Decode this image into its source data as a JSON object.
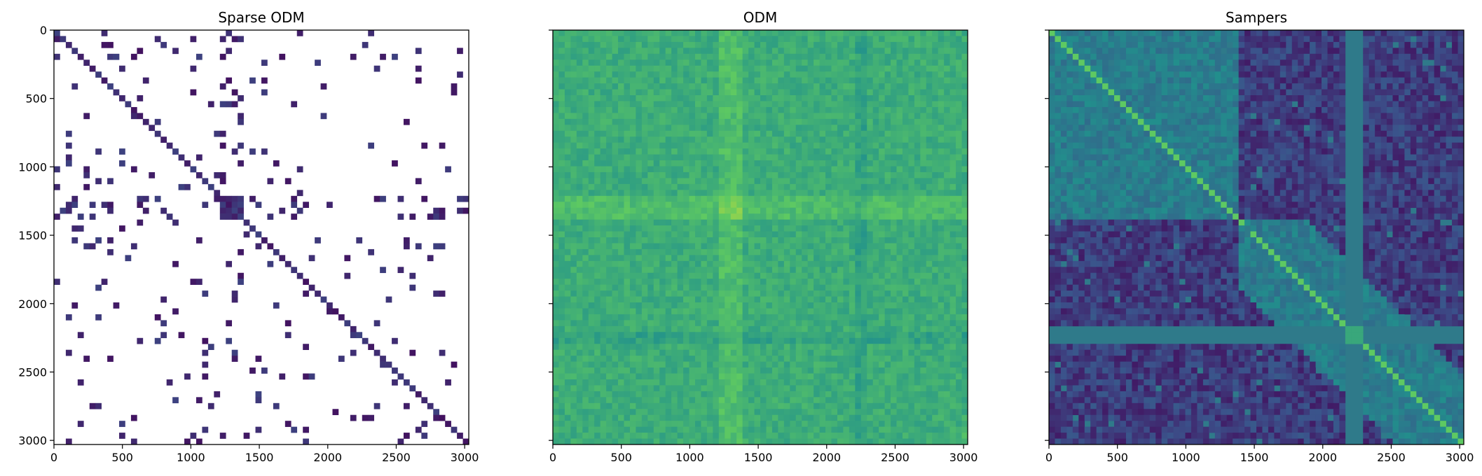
{
  "chart_data": [
    {
      "type": "heatmap",
      "title": "Sparse ODM",
      "xlabel": "",
      "ylabel": "",
      "xlim": [
        0,
        3030
      ],
      "ylim": [
        3030,
        0
      ],
      "xticks": [
        0,
        500,
        1000,
        1500,
        2000,
        2500,
        3000
      ],
      "yticks": [
        0,
        500,
        1000,
        1500,
        2000,
        2500,
        3000
      ],
      "show_y_tick_labels": true,
      "colormap": "viridis",
      "background": "#ffffff",
      "blocks": [
        {
          "range": [
            1230,
            1390
          ],
          "strength": 0.85
        },
        {
          "range": [
            1800,
            1880
          ],
          "strength": 0.35
        },
        {
          "range": [
            2160,
            2240
          ],
          "strength": 0.3
        },
        {
          "range": [
            2400,
            2480
          ],
          "strength": 0.3
        }
      ],
      "bands": [
        {
          "range": [
            1220,
            1400
          ],
          "strength": 0.35
        },
        {
          "range": [
            100,
            300
          ],
          "strength": 0.15
        }
      ],
      "diagonal": true
    },
    {
      "type": "heatmap",
      "title": "ODM",
      "xlabel": "",
      "ylabel": "",
      "xlim": [
        0,
        3030
      ],
      "ylim": [
        3030,
        0
      ],
      "xticks": [
        0,
        500,
        1000,
        1500,
        2000,
        2500,
        3000
      ],
      "yticks": [
        0,
        500,
        1000,
        1500,
        2000,
        2500,
        3000
      ],
      "show_y_tick_labels": false,
      "colormap": "viridis",
      "background": "#7ac850",
      "blocks": [
        {
          "range": [
            1220,
            1400
          ],
          "strength": 0.9
        },
        {
          "range": [
            2180,
            2260
          ],
          "strength": 0.5
        },
        {
          "range": [
            2900,
            3030
          ],
          "strength": 0.4
        }
      ],
      "bands": [
        {
          "range": [
            1220,
            1400
          ],
          "strength": 0.6
        },
        {
          "range": [
            2200,
            2300
          ],
          "strength": -0.4
        }
      ],
      "diagonal": false
    },
    {
      "type": "heatmap",
      "title": "Sampers",
      "xlabel": "",
      "ylabel": "",
      "xlim": [
        0,
        3030
      ],
      "ylim": [
        3030,
        0
      ],
      "xticks": [
        0,
        500,
        1000,
        1500,
        2000,
        2500,
        3000
      ],
      "yticks": [
        0,
        500,
        1000,
        1500,
        2000,
        2500,
        3000
      ],
      "show_y_tick_labels": false,
      "colormap": "viridis",
      "background": "#2f7a8a",
      "missing_band": [
        2150,
        2280
      ],
      "blocks": [
        {
          "range": [
            0,
            1400
          ],
          "strength": 0.5
        },
        {
          "range": [
            1400,
            2150
          ],
          "strength": 0.4
        },
        {
          "range": [
            2280,
            3030
          ],
          "strength": 0.4
        }
      ],
      "bands": [
        {
          "range": [
            1400,
            3030
          ],
          "strength": -0.6
        }
      ],
      "diagonal": true
    }
  ]
}
